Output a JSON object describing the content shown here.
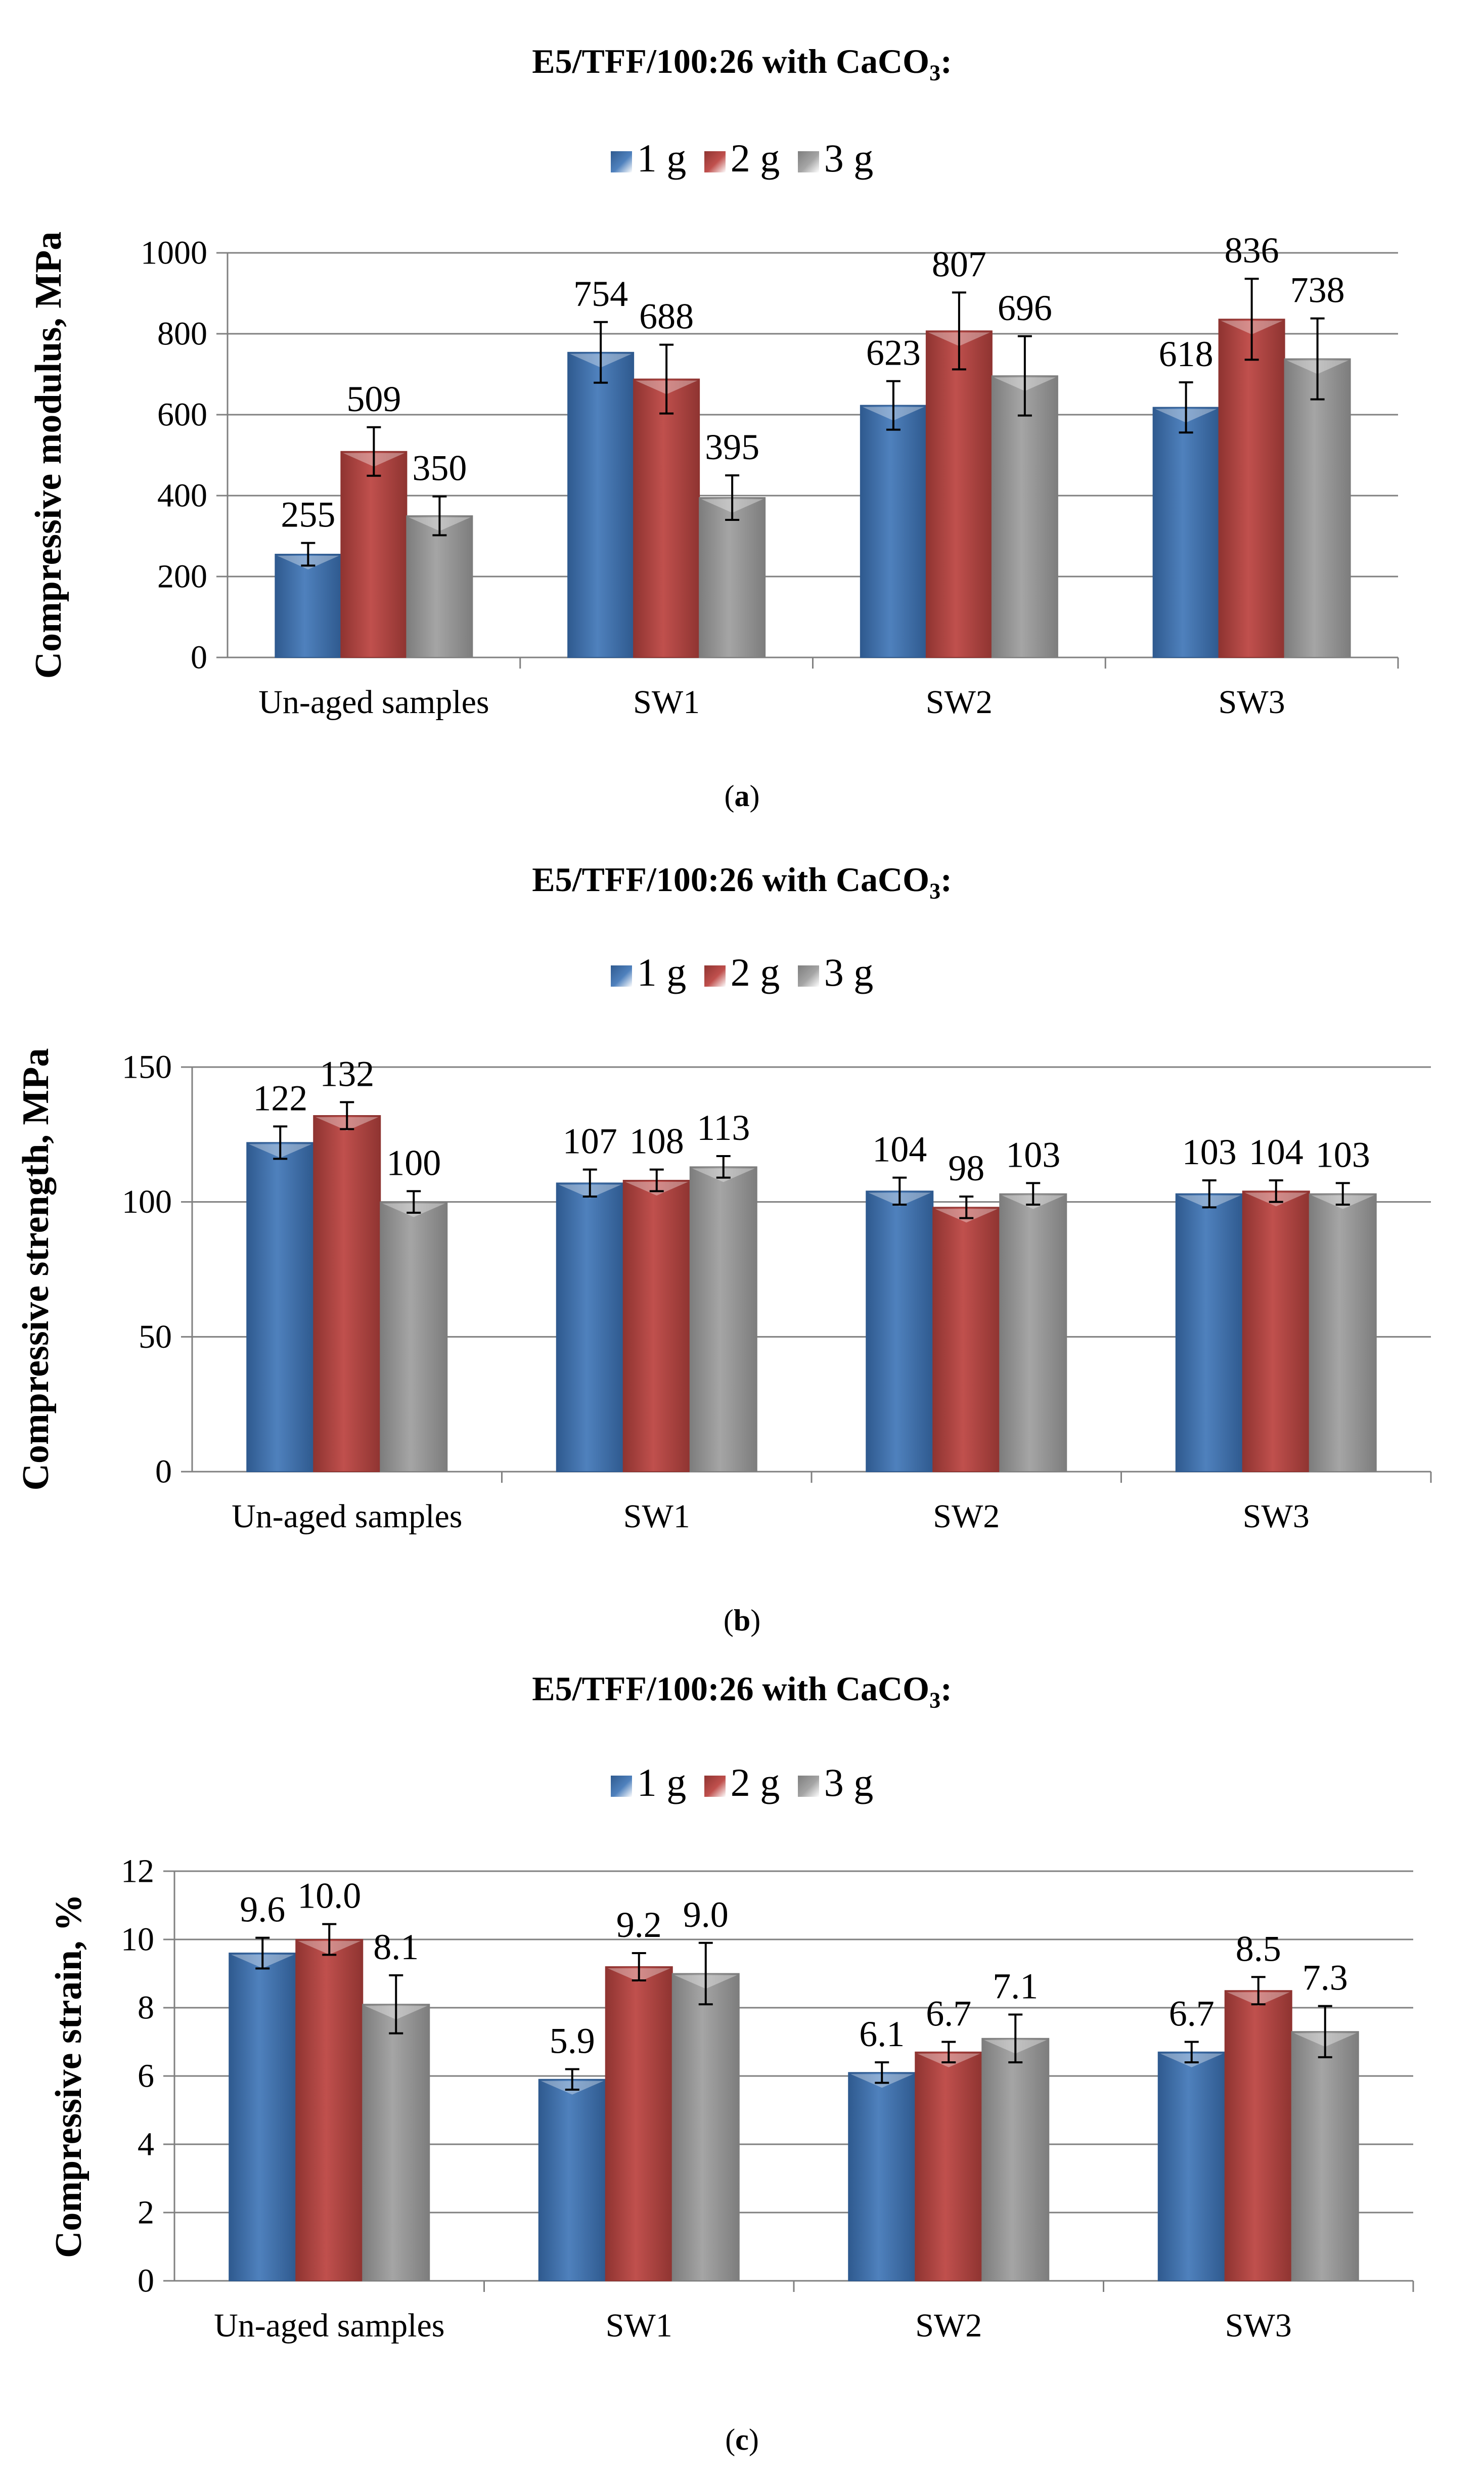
{
  "legend_labels": [
    "1 g",
    "2 g",
    "3 g"
  ],
  "colors": {
    "series": [
      "#4f81bd",
      "#c0504d",
      "#a5a5a5"
    ],
    "series_dark": [
      "#2f5a8f",
      "#8f3431",
      "#7d7d7d"
    ],
    "grid": "#808080"
  },
  "chart_data": [
    {
      "type": "bar",
      "title": "E5/TFF/100:26 with CaCO",
      "title_sub": "3",
      "title_suffix": ":",
      "caption": "a",
      "ylabel": "Compressive modulus, MPa",
      "ylim": [
        0,
        1000
      ],
      "yticks": [
        0,
        200,
        400,
        600,
        800,
        1000
      ],
      "tick_labels": [
        "0",
        "200",
        "400",
        "600",
        "800",
        "1000"
      ],
      "grid": true,
      "categories": [
        "Un-aged samples",
        "SW1",
        "SW2",
        "SW3"
      ],
      "series": [
        {
          "name": "1 g",
          "values": [
            255,
            754,
            623,
            618
          ],
          "labels": [
            "255",
            "754",
            "623",
            "618"
          ],
          "errors": [
            28,
            75,
            60,
            62
          ]
        },
        {
          "name": "2 g",
          "values": [
            509,
            688,
            807,
            836
          ],
          "labels": [
            "509",
            "688",
            "807",
            "836"
          ],
          "errors": [
            60,
            85,
            95,
            100
          ]
        },
        {
          "name": "3 g",
          "values": [
            350,
            395,
            696,
            738
          ],
          "labels": [
            "350",
            "395",
            "696",
            "738"
          ],
          "errors": [
            48,
            55,
            98,
            100
          ]
        }
      ]
    },
    {
      "type": "bar",
      "title": "E5/TFF/100:26 with CaCO",
      "title_sub": "3",
      "title_suffix": ":",
      "caption": "b",
      "ylabel": "Compressive strength, MPa",
      "ylim": [
        0,
        150
      ],
      "yticks": [
        0,
        50,
        100,
        150
      ],
      "tick_labels": [
        "0",
        "50",
        "100",
        "150"
      ],
      "grid": true,
      "categories": [
        "Un-aged samples",
        "SW1",
        "SW2",
        "SW3"
      ],
      "series": [
        {
          "name": "1 g",
          "values": [
            122,
            107,
            104,
            103
          ],
          "labels": [
            "122",
            "107",
            "104",
            "103"
          ],
          "errors": [
            6,
            5,
            5,
            5
          ]
        },
        {
          "name": "2 g",
          "values": [
            132,
            108,
            98,
            104
          ],
          "labels": [
            "132",
            "108",
            "98",
            "104"
          ],
          "errors": [
            5,
            4,
            4,
            4
          ]
        },
        {
          "name": "3 g",
          "values": [
            100,
            113,
            103,
            103
          ],
          "labels": [
            "100",
            "113",
            "103",
            "103"
          ],
          "errors": [
            4,
            4,
            4,
            4
          ]
        }
      ]
    },
    {
      "type": "bar",
      "title": "E5/TFF/100:26 with CaCO",
      "title_sub": "3",
      "title_suffix": ":",
      "caption": "c",
      "ylabel": "Compressive strain, %",
      "ylim": [
        0,
        12
      ],
      "yticks": [
        0,
        2,
        4,
        6,
        8,
        10,
        12
      ],
      "tick_labels": [
        "0",
        "2",
        "4",
        "6",
        "8",
        "10",
        "12"
      ],
      "grid": true,
      "categories": [
        "Un-aged samples",
        "SW1",
        "SW2",
        "SW3"
      ],
      "series": [
        {
          "name": "1 g",
          "values": [
            9.6,
            5.9,
            6.1,
            6.7
          ],
          "labels": [
            "9.6",
            "5.9",
            "6.1",
            "6.7"
          ],
          "errors": [
            0.45,
            0.3,
            0.3,
            0.3
          ]
        },
        {
          "name": "2 g",
          "values": [
            10.0,
            9.2,
            6.7,
            8.5
          ],
          "labels": [
            "10.0",
            "9.2",
            "6.7",
            "8.5"
          ],
          "errors": [
            0.45,
            0.4,
            0.3,
            0.4
          ]
        },
        {
          "name": "3 g",
          "values": [
            8.1,
            9.0,
            7.1,
            7.3
          ],
          "labels": [
            "8.1",
            "9.0",
            "7.1",
            "7.3"
          ],
          "errors": [
            0.85,
            0.9,
            0.7,
            0.75
          ]
        }
      ]
    }
  ]
}
